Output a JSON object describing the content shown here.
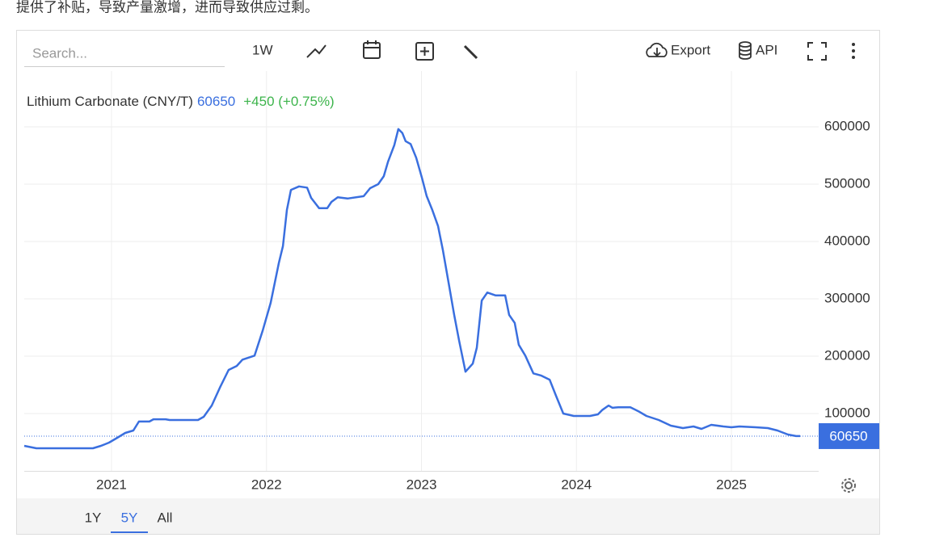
{
  "page_text": "提供了补贴，导致产量激增，进而导致供应过剩。",
  "toolbar": {
    "search_placeholder": "Search...",
    "interval": "1W",
    "export": "Export",
    "api": "API"
  },
  "range_buttons": [
    "1Y",
    "5Y",
    "All"
  ],
  "active_range": "5Y",
  "chart_data": {
    "type": "line",
    "series_change": "+450 (+0.75%)",
    "last_value": 60650,
    "x": [
      2020.437,
      2020.515,
      2020.88,
      2020.932,
      2020.984,
      2021.037,
      2021.089,
      2021.141,
      2021.177,
      2021.245,
      2021.271,
      2021.349,
      2021.375,
      2021.558,
      2021.595,
      2021.647,
      2021.699,
      2021.756,
      2021.808,
      2021.845,
      2021.923,
      2021.975,
      2022.027,
      2022.08,
      2022.106,
      2022.132,
      2022.158,
      2022.21,
      2022.262,
      2022.288,
      2022.34,
      2022.392,
      2022.419,
      2022.46,
      2022.523,
      2022.627,
      2022.669,
      2022.721,
      2022.757,
      2022.784,
      2022.825,
      2022.851,
      2022.877,
      2022.898,
      2022.93,
      2022.966,
      2023.003,
      2023.034,
      2023.07,
      2023.107,
      2023.138,
      2023.175,
      2023.211,
      2023.243,
      2023.284,
      2023.331,
      2023.357,
      2023.389,
      2023.425,
      2023.477,
      2023.54,
      2023.566,
      2023.602,
      2023.628,
      2023.67,
      2023.722,
      2023.774,
      2023.827,
      2023.868,
      2023.915,
      2023.983,
      2024.087,
      2024.139,
      2024.166,
      2024.207,
      2024.233,
      2024.27,
      2024.348,
      2024.4,
      2024.452,
      2024.531,
      2024.609,
      2024.687,
      2024.755,
      2024.807,
      2024.87,
      2024.948,
      2025.0,
      2025.052,
      2025.156,
      2025.235,
      2025.297,
      2025.365,
      2025.417,
      2025.443
    ],
    "series": [
      {
        "name": "Lithium Carbonate (CNY/T)",
        "color": "#3a6fdf",
        "values": [
          43700,
          39400,
          39400,
          43700,
          49300,
          57700,
          66200,
          70400,
          86000,
          86000,
          90000,
          90000,
          88700,
          88700,
          94400,
          114000,
          145000,
          176000,
          183000,
          194000,
          201000,
          244000,
          293000,
          363000,
          392000,
          455000,
          490000,
          496000,
          494000,
          476000,
          458000,
          458000,
          469000,
          477000,
          475000,
          479000,
          493000,
          500000,
          514000,
          539000,
          568000,
          596000,
          589000,
          575000,
          570000,
          546000,
          511000,
          479000,
          455000,
          427000,
          385000,
          328000,
          272000,
          227000,
          173000,
          187000,
          215000,
          297000,
          311000,
          306000,
          306000,
          272000,
          258000,
          220000,
          201000,
          170000,
          166000,
          159000,
          131000,
          100000,
          95800,
          95800,
          98600,
          106000,
          114000,
          110000,
          111000,
          111000,
          104000,
          95800,
          88700,
          78900,
          74600,
          77500,
          73200,
          80300,
          77500,
          76100,
          77500,
          76100,
          74600,
          70400,
          63400,
          60650,
          60650
        ]
      }
    ],
    "xlim": [
      2020.437,
      2025.563
    ],
    "xticks": [
      2021,
      2022,
      2023,
      2024,
      2025
    ],
    "ylim": [
      0,
      700000
    ],
    "yticks": [
      100000,
      200000,
      300000,
      400000,
      500000,
      600000
    ],
    "grid": true
  }
}
